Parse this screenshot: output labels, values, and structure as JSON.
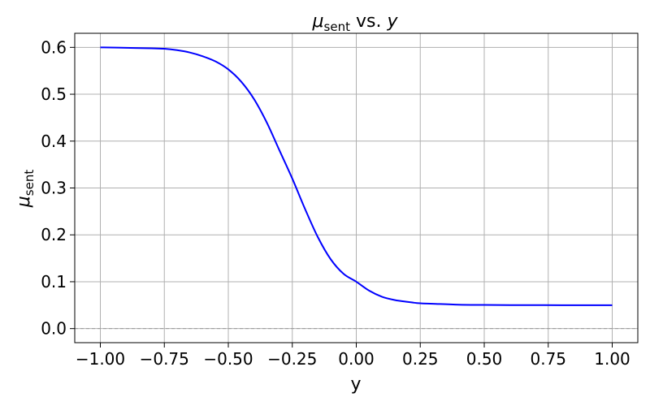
{
  "chart_data": {
    "type": "line",
    "title": {
      "symbol": "μ",
      "subscript": "sent",
      "middle": " vs. ",
      "var": "y"
    },
    "xlabel": "y",
    "ylabel": {
      "symbol": "μ",
      "subscript": "sent"
    },
    "xlim": [
      -1.1,
      1.1
    ],
    "ylim": [
      -0.03,
      0.63
    ],
    "x_ticks": [
      -1.0,
      -0.75,
      -0.5,
      -0.25,
      0.0,
      0.25,
      0.5,
      0.75,
      1.0
    ],
    "x_tick_labels": [
      "−1.00",
      "−0.75",
      "−0.50",
      "−0.25",
      "0.00",
      "0.25",
      "0.50",
      "0.75",
      "1.00"
    ],
    "y_ticks": [
      0.0,
      0.1,
      0.2,
      0.3,
      0.4,
      0.5,
      0.6
    ],
    "y_tick_labels": [
      "0.0",
      "0.1",
      "0.2",
      "0.3",
      "0.4",
      "0.5",
      "0.6"
    ],
    "grid": true,
    "reference_line": {
      "y": 0.0,
      "style": "dashed",
      "color": "#999999"
    },
    "series": [
      {
        "color": "#0000ff",
        "x": [
          -1.0,
          -0.9,
          -0.8,
          -0.75,
          -0.7,
          -0.65,
          -0.6,
          -0.55,
          -0.5,
          -0.45,
          -0.4,
          -0.35,
          -0.3,
          -0.25,
          -0.2,
          -0.15,
          -0.1,
          -0.05,
          0.0,
          0.05,
          0.1,
          0.15,
          0.2,
          0.25,
          0.3,
          0.4,
          0.5,
          0.6,
          0.7,
          0.8,
          0.9,
          1.0
        ],
        "y": [
          0.6,
          0.599,
          0.598,
          0.597,
          0.594,
          0.589,
          0.581,
          0.57,
          0.553,
          0.527,
          0.49,
          0.44,
          0.38,
          0.32,
          0.255,
          0.195,
          0.148,
          0.117,
          0.1,
          0.081,
          0.068,
          0.061,
          0.057,
          0.054,
          0.053,
          0.051,
          0.0505,
          0.0502,
          0.0501,
          0.05,
          0.05,
          0.05
        ]
      }
    ]
  }
}
